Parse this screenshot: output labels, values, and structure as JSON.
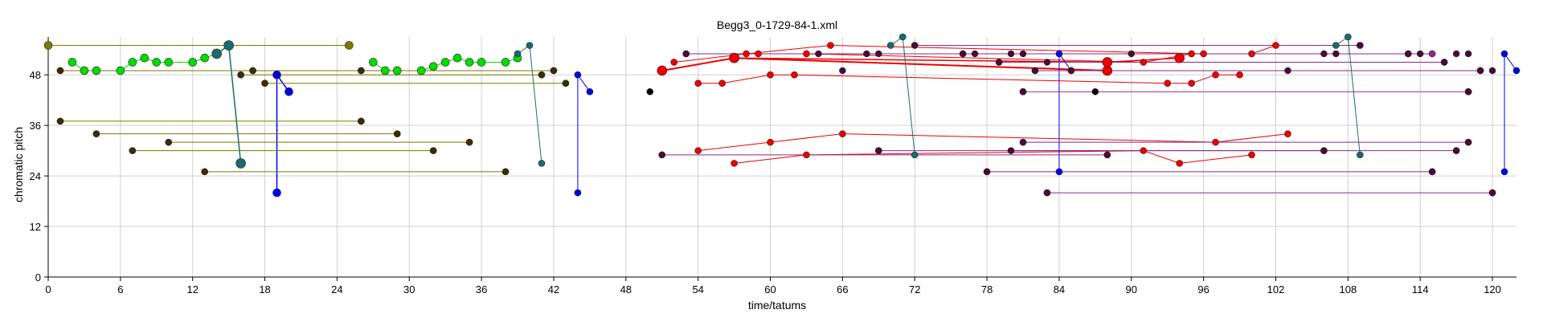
{
  "chart_data": {
    "type": "scatter",
    "title": "Begg3_0-1729-84-1.xml",
    "xlabel": "time/tatums",
    "ylabel": "chromatic pitch",
    "xlim": [
      0,
      122
    ],
    "ylim": [
      0,
      57
    ],
    "x_ticks": [
      0,
      6,
      12,
      18,
      24,
      30,
      36,
      42,
      48,
      54,
      60,
      66,
      72,
      78,
      84,
      90,
      96,
      102,
      108,
      114,
      120
    ],
    "y_ticks": [
      0,
      12,
      24,
      36,
      48
    ],
    "grid": true,
    "legend": "none",
    "colors": {
      "green": "#00dd00",
      "olive": "#7a7a00",
      "dark": "#3a2e00",
      "teal": "#1a6b6b",
      "blue": "#0000ee",
      "red": "#ee0000",
      "purple": "#8a2a8a",
      "darkpurple": "#4a0a3a",
      "black": "#000000"
    },
    "series": [
      {
        "color": "green",
        "width": 1,
        "r": 5,
        "points": [
          [
            2,
            51
          ],
          [
            3,
            49
          ],
          [
            4,
            49
          ],
          [
            6,
            49
          ],
          [
            7,
            51
          ],
          [
            8,
            52
          ],
          [
            9,
            51
          ],
          [
            10,
            51
          ],
          [
            12,
            51
          ],
          [
            13,
            52
          ],
          [
            14,
            53
          ]
        ]
      },
      {
        "color": "green",
        "width": 1,
        "r": 5,
        "points": [
          [
            27,
            51
          ],
          [
            28,
            49
          ],
          [
            29,
            49
          ],
          [
            31,
            49
          ],
          [
            32,
            50
          ],
          [
            33,
            51
          ],
          [
            34,
            52
          ],
          [
            35,
            51
          ],
          [
            36,
            51
          ],
          [
            38,
            51
          ],
          [
            39,
            52
          ]
        ]
      },
      {
        "color": "teal",
        "width": 1.5,
        "r": 6,
        "points": [
          [
            14,
            53
          ],
          [
            15,
            55
          ],
          [
            16,
            27
          ]
        ]
      },
      {
        "color": "teal",
        "width": 1,
        "r": 4,
        "points": [
          [
            39,
            53
          ],
          [
            40,
            55
          ],
          [
            41,
            27
          ]
        ]
      },
      {
        "color": "blue",
        "width": 1.5,
        "r": 5,
        "points": [
          [
            19,
            20
          ],
          [
            19,
            48
          ],
          [
            20,
            44
          ]
        ]
      },
      {
        "color": "blue",
        "width": 1,
        "r": 4,
        "points": [
          [
            44,
            20
          ],
          [
            44,
            48
          ],
          [
            45,
            44
          ]
        ]
      },
      {
        "color": "olive",
        "width": 1,
        "r": 5,
        "points": [
          [
            0,
            55
          ],
          [
            25,
            55
          ]
        ]
      },
      {
        "color": "olive",
        "width": 1,
        "r": 4,
        "points": [
          [
            1,
            49
          ],
          [
            26,
            49
          ]
        ]
      },
      {
        "color": "olive",
        "width": 1,
        "r": 4,
        "points": [
          [
            16,
            48
          ],
          [
            41,
            48
          ]
        ]
      },
      {
        "color": "olive",
        "width": 1,
        "r": 4,
        "points": [
          [
            17,
            49
          ],
          [
            42,
            49
          ]
        ]
      },
      {
        "color": "olive",
        "width": 1,
        "r": 4,
        "points": [
          [
            18,
            46
          ],
          [
            43,
            46
          ]
        ]
      },
      {
        "color": "olive",
        "width": 1,
        "r": 4,
        "points": [
          [
            1,
            37
          ],
          [
            26,
            37
          ]
        ]
      },
      {
        "color": "olive",
        "width": 1,
        "r": 4,
        "points": [
          [
            4,
            34
          ],
          [
            29,
            34
          ]
        ]
      },
      {
        "color": "olive",
        "width": 1,
        "r": 4,
        "points": [
          [
            10,
            32
          ],
          [
            35,
            32
          ]
        ]
      },
      {
        "color": "olive",
        "width": 1,
        "r": 4,
        "points": [
          [
            7,
            30
          ],
          [
            32,
            30
          ]
        ]
      },
      {
        "color": "olive",
        "width": 1,
        "r": 4,
        "points": [
          [
            13,
            25
          ],
          [
            38,
            25
          ]
        ]
      },
      {
        "color": "red",
        "width": 2,
        "r": 6,
        "points": [
          [
            51,
            49
          ],
          [
            57,
            52
          ],
          [
            88,
            49
          ]
        ]
      },
      {
        "color": "red",
        "width": 1.5,
        "r": 6,
        "points": [
          [
            57,
            52
          ],
          [
            88,
            51
          ],
          [
            94,
            52
          ]
        ]
      },
      {
        "color": "red",
        "width": 1,
        "r": 4,
        "points": [
          [
            52,
            51
          ],
          [
            58,
            53
          ],
          [
            65,
            55
          ],
          [
            96,
            53
          ]
        ]
      },
      {
        "color": "red",
        "width": 1,
        "r": 4,
        "points": [
          [
            59,
            53
          ],
          [
            63,
            53
          ],
          [
            91,
            51
          ],
          [
            95,
            53
          ],
          [
            100,
            53
          ],
          [
            102,
            55
          ]
        ]
      },
      {
        "color": "red",
        "width": 1,
        "r": 4,
        "points": [
          [
            54,
            46
          ],
          [
            56,
            46
          ],
          [
            60,
            48
          ],
          [
            62,
            48
          ],
          [
            93,
            46
          ],
          [
            95,
            46
          ],
          [
            97,
            48
          ],
          [
            99,
            48
          ]
        ]
      },
      {
        "color": "red",
        "width": 1,
        "r": 4,
        "points": [
          [
            54,
            30
          ],
          [
            60,
            32
          ],
          [
            66,
            34
          ],
          [
            97,
            32
          ],
          [
            103,
            34
          ]
        ]
      },
      {
        "color": "red",
        "width": 1,
        "r": 4,
        "points": [
          [
            57,
            27
          ],
          [
            63,
            29
          ],
          [
            91,
            30
          ],
          [
            94,
            27
          ],
          [
            100,
            29
          ]
        ]
      },
      {
        "color": "teal",
        "width": 1,
        "r": 4,
        "points": [
          [
            70,
            55
          ],
          [
            71,
            57
          ],
          [
            72,
            29
          ]
        ]
      },
      {
        "color": "teal",
        "width": 1,
        "r": 4,
        "points": [
          [
            107,
            55
          ],
          [
            108,
            57
          ],
          [
            109,
            29
          ]
        ]
      },
      {
        "color": "blue",
        "width": 1,
        "r": 4,
        "points": [
          [
            84,
            25
          ],
          [
            84,
            53
          ],
          [
            85,
            49
          ]
        ]
      },
      {
        "color": "blue",
        "width": 1,
        "r": 4,
        "points": [
          [
            121,
            25
          ],
          [
            121,
            53
          ],
          [
            122,
            49
          ]
        ]
      },
      {
        "color": "purple",
        "width": 1,
        "r": 4,
        "points": [
          [
            51,
            29
          ],
          [
            88,
            29
          ]
        ]
      },
      {
        "color": "purple",
        "width": 1,
        "r": 4,
        "points": [
          [
            53,
            53
          ],
          [
            115,
            53
          ]
        ]
      },
      {
        "color": "purple",
        "width": 1,
        "r": 4,
        "points": [
          [
            72,
            55
          ],
          [
            109,
            55
          ]
        ]
      },
      {
        "color": "purple",
        "width": 1,
        "r": 4,
        "points": [
          [
            78,
            25
          ],
          [
            115,
            25
          ]
        ]
      },
      {
        "color": "purple",
        "width": 1,
        "r": 4,
        "points": [
          [
            81,
            44
          ],
          [
            118,
            44
          ]
        ]
      },
      {
        "color": "purple",
        "width": 1,
        "r": 4,
        "points": [
          [
            81,
            32
          ],
          [
            118,
            32
          ]
        ]
      },
      {
        "color": "purple",
        "width": 1,
        "r": 4,
        "points": [
          [
            83,
            20
          ],
          [
            120,
            20
          ]
        ]
      },
      {
        "color": "purple",
        "width": 1,
        "r": 4,
        "points": [
          [
            69,
            30
          ],
          [
            106,
            30
          ]
        ]
      },
      {
        "color": "purple",
        "width": 1,
        "r": 4,
        "points": [
          [
            80,
            30
          ],
          [
            117,
            30
          ]
        ]
      },
      {
        "color": "purple",
        "width": 1,
        "r": 4,
        "points": [
          [
            76,
            53
          ],
          [
            113,
            53
          ]
        ]
      },
      {
        "color": "purple",
        "width": 1,
        "r": 4,
        "points": [
          [
            79,
            51
          ],
          [
            116,
            51
          ]
        ]
      },
      {
        "color": "purple",
        "width": 1,
        "r": 4,
        "points": [
          [
            82,
            49
          ],
          [
            119,
            49
          ]
        ]
      }
    ],
    "markers": [
      {
        "color": "dark",
        "r": 4,
        "points": [
          [
            1,
            49
          ],
          [
            26,
            49
          ],
          [
            16,
            48
          ],
          [
            41,
            48
          ],
          [
            17,
            49
          ],
          [
            42,
            49
          ],
          [
            18,
            46
          ],
          [
            43,
            46
          ],
          [
            1,
            37
          ],
          [
            26,
            37
          ],
          [
            4,
            34
          ],
          [
            29,
            34
          ],
          [
            10,
            32
          ],
          [
            35,
            32
          ],
          [
            7,
            30
          ],
          [
            32,
            30
          ],
          [
            13,
            25
          ],
          [
            38,
            25
          ]
        ]
      },
      {
        "color": "black",
        "r": 4,
        "points": [
          [
            50,
            44
          ],
          [
            87,
            44
          ]
        ]
      },
      {
        "color": "darkpurple",
        "r": 4,
        "points": [
          [
            53,
            53
          ],
          [
            64,
            53
          ],
          [
            68,
            53
          ],
          [
            69,
            53
          ],
          [
            76,
            53
          ],
          [
            77,
            53
          ],
          [
            80,
            53
          ],
          [
            81,
            53
          ],
          [
            90,
            53
          ],
          [
            106,
            53
          ],
          [
            107,
            53
          ],
          [
            113,
            53
          ],
          [
            114,
            53
          ],
          [
            117,
            53
          ],
          [
            118,
            53
          ],
          [
            82,
            49
          ],
          [
            85,
            49
          ],
          [
            66,
            49
          ],
          [
            103,
            49
          ],
          [
            119,
            49
          ],
          [
            120,
            49
          ],
          [
            79,
            51
          ],
          [
            116,
            51
          ],
          [
            83,
            51
          ],
          [
            72,
            55
          ],
          [
            109,
            55
          ],
          [
            78,
            25
          ],
          [
            115,
            25
          ],
          [
            81,
            44
          ],
          [
            118,
            44
          ],
          [
            81,
            32
          ],
          [
            118,
            32
          ],
          [
            83,
            20
          ],
          [
            120,
            20
          ],
          [
            69,
            30
          ],
          [
            106,
            30
          ],
          [
            80,
            30
          ],
          [
            117,
            30
          ],
          [
            88,
            29
          ],
          [
            51,
            29
          ]
        ]
      }
    ]
  }
}
